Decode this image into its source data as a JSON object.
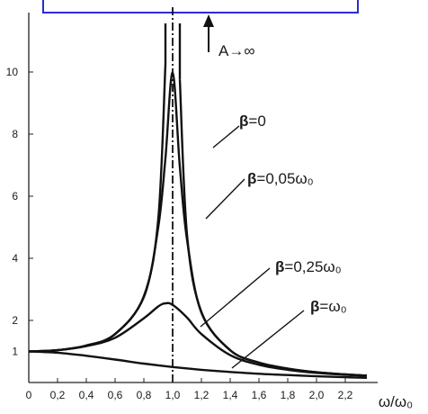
{
  "chart_data": {
    "type": "line",
    "x_axis": {
      "label": "ω/ω₀",
      "range": [
        0,
        2.35
      ],
      "ticks": [
        0,
        0.2,
        0.4,
        0.6,
        0.8,
        1.0,
        1.2,
        1.4,
        1.6,
        1.8,
        2.0,
        2.2
      ],
      "tick_labels": [
        "0",
        "0,2",
        "0,4",
        "0,6",
        "0,8",
        "1,0",
        "1,2",
        "1,4",
        "1,6",
        "1,8",
        "2,0",
        "2,2"
      ]
    },
    "y_axis": {
      "label": "",
      "range": [
        0,
        12
      ],
      "ticks": [
        1,
        2,
        4,
        6,
        8,
        10
      ],
      "tick_labels": [
        "1",
        "2",
        "4",
        "6",
        "8",
        "10"
      ]
    },
    "grid": false,
    "resonance_line": {
      "x": 1.0,
      "style": "dash-dot"
    },
    "arrow_annotation": "A→∞",
    "series": [
      {
        "name": "β=0",
        "damping_ratio": 0,
        "x": [
          0,
          0.2,
          0.4,
          0.6,
          0.8,
          0.9,
          0.95,
          1.05,
          1.1,
          1.2,
          1.4,
          1.6,
          1.8,
          2.0,
          2.2,
          2.35
        ],
        "y": [
          1.0,
          1.04,
          1.19,
          1.56,
          2.78,
          5.26,
          10.26,
          9.76,
          4.76,
          2.27,
          1.04,
          0.64,
          0.45,
          0.33,
          0.26,
          0.22
        ]
      },
      {
        "name": "β=0,05ω₀",
        "damping_ratio": 0.05,
        "x": [
          0,
          0.2,
          0.4,
          0.6,
          0.8,
          0.9,
          0.95,
          1.0,
          1.05,
          1.1,
          1.2,
          1.4,
          1.6,
          1.8,
          2.0,
          2.2,
          2.35
        ],
        "y": [
          1.0,
          1.04,
          1.19,
          1.56,
          2.75,
          5.0,
          7.23,
          9.98,
          6.95,
          4.6,
          2.25,
          1.04,
          0.64,
          0.45,
          0.33,
          0.26,
          0.22
        ]
      },
      {
        "name": "β=0,25ω₀",
        "damping_ratio": 0.25,
        "x": [
          0,
          0.2,
          0.4,
          0.6,
          0.8,
          0.9,
          0.95,
          1.0,
          1.1,
          1.2,
          1.4,
          1.6,
          1.8,
          2.0,
          2.2,
          2.35
        ],
        "y": [
          1.0,
          1.04,
          1.17,
          1.44,
          2.07,
          2.45,
          2.55,
          2.5,
          2.09,
          1.56,
          0.88,
          0.57,
          0.41,
          0.31,
          0.25,
          0.22
        ]
      },
      {
        "name": "β=ω₀",
        "damping_ratio": 1.0,
        "x": [
          0,
          0.2,
          0.4,
          0.6,
          0.8,
          1.0,
          1.2,
          1.4,
          1.6,
          1.8,
          2.0,
          2.2,
          2.35
        ],
        "y": [
          1.0,
          0.96,
          0.86,
          0.74,
          0.61,
          0.5,
          0.41,
          0.34,
          0.28,
          0.24,
          0.2,
          0.17,
          0.15
        ]
      }
    ],
    "curve_labels": [
      {
        "prefix": "β",
        "value": "=0"
      },
      {
        "prefix": "β",
        "value": "=0,05ω₀"
      },
      {
        "prefix": "β",
        "value": "=0,25ω₀"
      },
      {
        "prefix": "β",
        "value": "=ω₀"
      }
    ]
  }
}
